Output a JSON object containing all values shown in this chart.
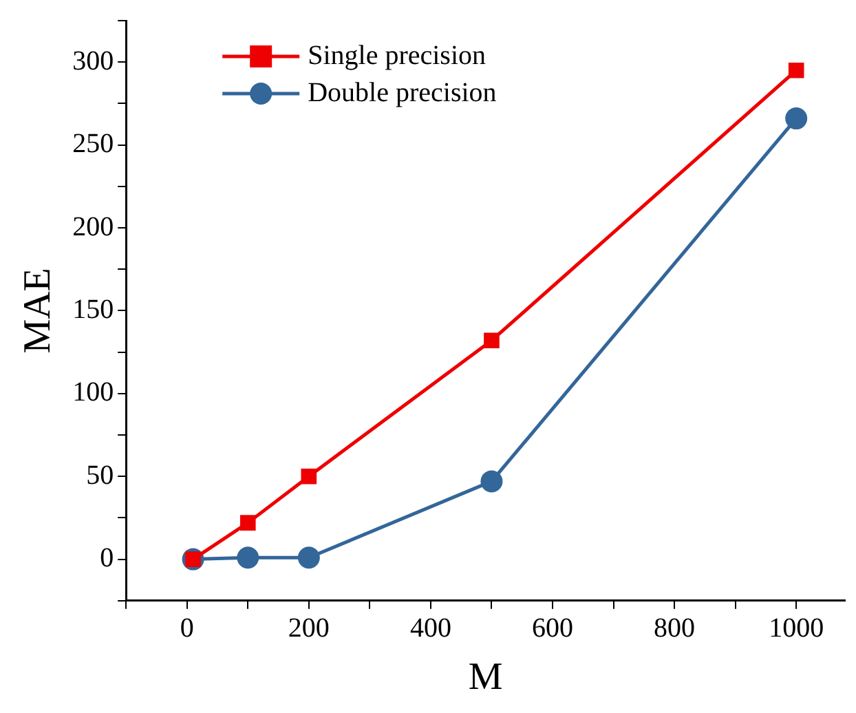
{
  "chart_data": {
    "type": "line",
    "xlabel": "M",
    "ylabel": "MAE",
    "xlim": [
      -100,
      1080
    ],
    "xticks": [
      {
        "value": -100,
        "label": null
      },
      0,
      {
        "value": 100,
        "label": null
      },
      200,
      {
        "value": 300,
        "label": null
      },
      400,
      {
        "value": 500,
        "label": null
      },
      600,
      {
        "value": 700,
        "label": null
      },
      800,
      {
        "value": 900,
        "label": null
      },
      1000
    ],
    "ylim": [
      -25,
      325
    ],
    "yticks": [
      {
        "value": -25,
        "label": null
      },
      0,
      {
        "value": 25,
        "label": null
      },
      50,
      {
        "value": 75,
        "label": null
      },
      100,
      {
        "value": 125,
        "label": null
      },
      150,
      {
        "value": 175,
        "label": null
      },
      200,
      {
        "value": 225,
        "label": null
      },
      250,
      {
        "value": 275,
        "label": null
      },
      300,
      {
        "value": 325,
        "label": null
      }
    ],
    "x": [
      10,
      100,
      200,
      500,
      1000
    ],
    "series": [
      {
        "name": "Single precision",
        "color": "#ee0000",
        "marker": "square",
        "values": [
          0,
          22,
          50,
          132,
          295
        ]
      },
      {
        "name": "Double precision",
        "color": "#336699",
        "marker": "circle",
        "values": [
          0,
          1,
          1,
          47,
          266
        ]
      }
    ],
    "legend": "top left",
    "grid": false,
    "line_style": "solid"
  }
}
